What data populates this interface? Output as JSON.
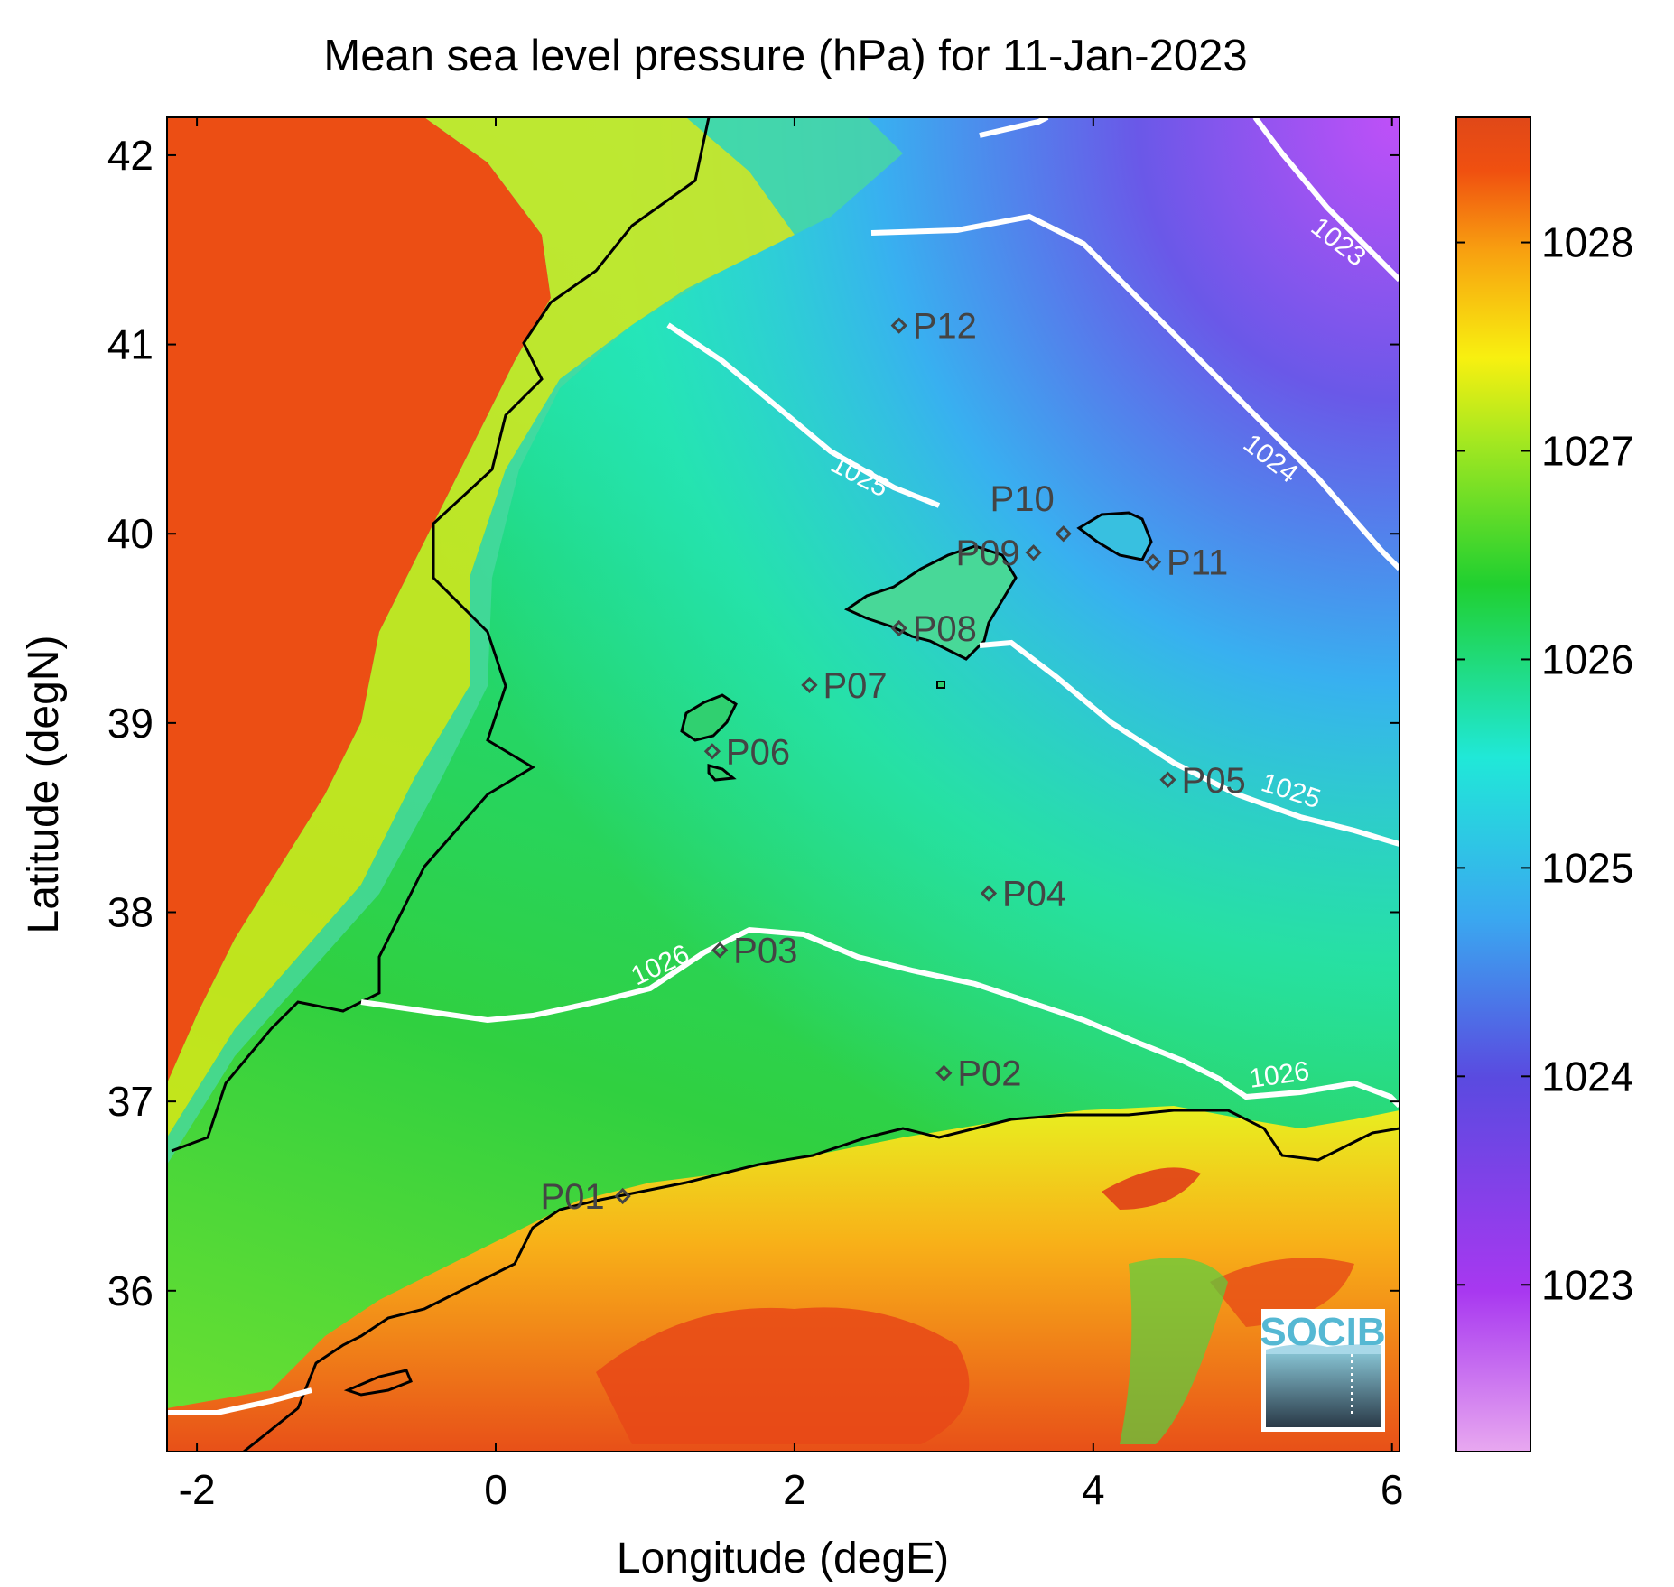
{
  "title": "Mean sea level pressure (hPa) for 11-Jan-2023",
  "chart_data": {
    "type": "heatmap",
    "title": "Mean sea level pressure (hPa) for 11-Jan-2023",
    "xlabel": "Longitude (degE)",
    "ylabel": "Latitude (degN)",
    "xlim": [
      -2.2,
      6.05
    ],
    "ylim": [
      35.15,
      42.2
    ],
    "x_ticks": [
      "-2",
      "0",
      "2",
      "4",
      "6"
    ],
    "y_ticks": [
      "36",
      "37",
      "38",
      "39",
      "40",
      "41",
      "42"
    ],
    "colorbar": {
      "range": [
        1022.2,
        1028.6
      ],
      "ticks": [
        "1023",
        "1024",
        "1025",
        "1026",
        "1027",
        "1028"
      ],
      "colors": [
        "#e8a8f0",
        "#a838f0",
        "#5a4ae0",
        "#3aa8f0",
        "#20e8d8",
        "#20d030",
        "#a8e820",
        "#f8f010",
        "#f8a010",
        "#f05010",
        "#e04818"
      ]
    },
    "contour_labels": [
      "1023",
      "1024",
      "1025",
      "1025",
      "1026",
      "1026"
    ],
    "points": [
      {
        "name": "P01",
        "lon": 0.85,
        "lat": 36.5
      },
      {
        "name": "P02",
        "lon": 3.0,
        "lat": 37.15
      },
      {
        "name": "P03",
        "lon": 1.5,
        "lat": 37.8
      },
      {
        "name": "P04",
        "lon": 3.3,
        "lat": 38.1
      },
      {
        "name": "P05",
        "lon": 4.5,
        "lat": 38.7
      },
      {
        "name": "P06",
        "lon": 1.45,
        "lat": 38.85
      },
      {
        "name": "P07",
        "lon": 2.1,
        "lat": 39.2
      },
      {
        "name": "P08",
        "lon": 2.7,
        "lat": 39.5
      },
      {
        "name": "P09",
        "lon": 3.6,
        "lat": 39.9
      },
      {
        "name": "P10",
        "lon": 3.8,
        "lat": 40.0
      },
      {
        "name": "P11",
        "lon": 4.4,
        "lat": 39.85
      },
      {
        "name": "P12",
        "lon": 2.7,
        "lat": 41.1
      }
    ]
  },
  "logo": {
    "text": "SOCIB"
  }
}
